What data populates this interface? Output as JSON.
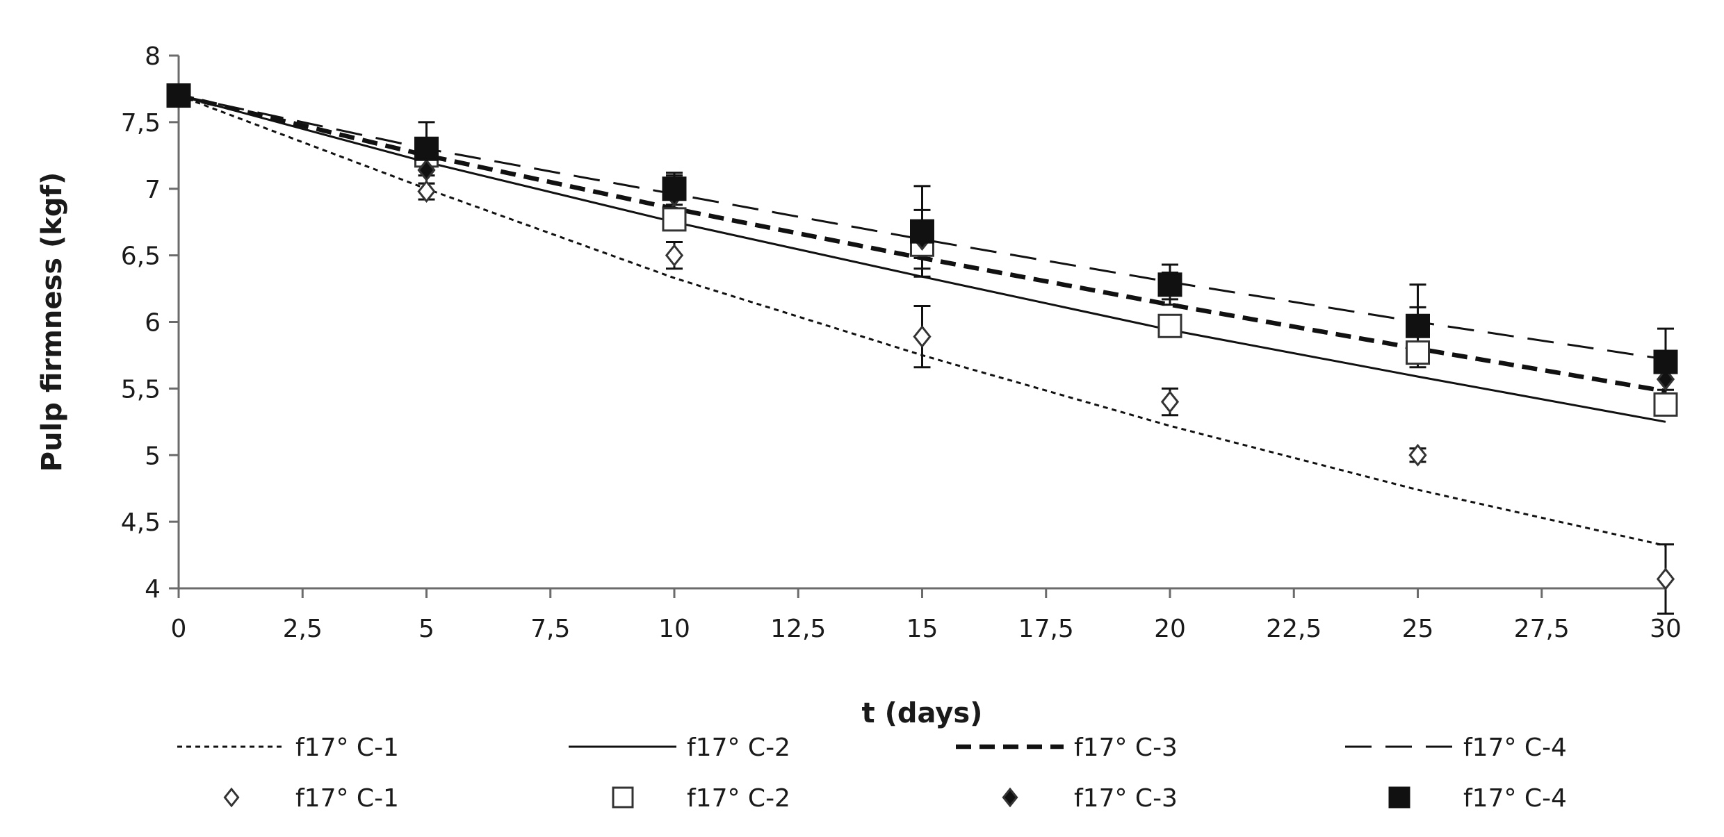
{
  "chart_data": {
    "type": "scatter",
    "xlabel": "t (days)",
    "ylabel": "Pulp firmness (kgf)",
    "xlim": [
      0,
      30
    ],
    "ylim": [
      4,
      8
    ],
    "x_ticks": [
      "0",
      "2,5",
      "5",
      "7,5",
      "10",
      "12,5",
      "15",
      "17,5",
      "20",
      "22,5",
      "25",
      "27,5",
      "30"
    ],
    "y_ticks": [
      "4",
      "4,5",
      "5",
      "5,5",
      "6",
      "6,5",
      "7",
      "7,5",
      "8"
    ],
    "grid": false,
    "legend_position": "bottom",
    "x": [
      0,
      5,
      10,
      15,
      20,
      25,
      30
    ],
    "series": [
      {
        "name": "f17° C-1",
        "marker": "open-diamond",
        "line_style": "dotted",
        "values": [
          7.7,
          6.98,
          6.5,
          5.89,
          5.4,
          5.0,
          4.07
        ],
        "error": [
          0.03,
          0.06,
          0.1,
          0.23,
          0.1,
          0.05,
          0.26
        ],
        "fit": [
          7.7,
          7.0,
          6.33,
          5.75,
          5.22,
          4.74,
          4.32
        ]
      },
      {
        "name": "f17° C-2",
        "marker": "open-square",
        "line_style": "solid",
        "values": [
          7.7,
          7.25,
          6.77,
          6.58,
          5.97,
          5.77,
          5.38
        ],
        "error": [
          0.03,
          0.06,
          0.06,
          0.1,
          0.05,
          0.08,
          0.06
        ],
        "fit": [
          7.7,
          7.2,
          6.75,
          6.34,
          5.94,
          5.59,
          5.25
        ]
      },
      {
        "name": "f17° C-3",
        "marker": "filled-diamond",
        "line_style": "bold-dashed",
        "values": [
          7.7,
          7.14,
          6.95,
          6.62,
          6.27,
          5.97,
          5.57
        ],
        "error": [
          0.03,
          0.1,
          0.15,
          0.22,
          0.1,
          0.14,
          0.08
        ],
        "fit": [
          7.7,
          7.25,
          6.85,
          6.48,
          6.13,
          5.8,
          5.48
        ]
      },
      {
        "name": "f17° C-4",
        "marker": "filled-square",
        "line_style": "long-dashed",
        "values": [
          7.7,
          7.3,
          7.0,
          6.68,
          6.28,
          5.97,
          5.7
        ],
        "error": [
          0.03,
          0.2,
          0.12,
          0.34,
          0.15,
          0.31,
          0.25
        ],
        "fit": [
          7.7,
          7.3,
          6.96,
          6.62,
          6.3,
          6.0,
          5.72
        ]
      }
    ]
  }
}
